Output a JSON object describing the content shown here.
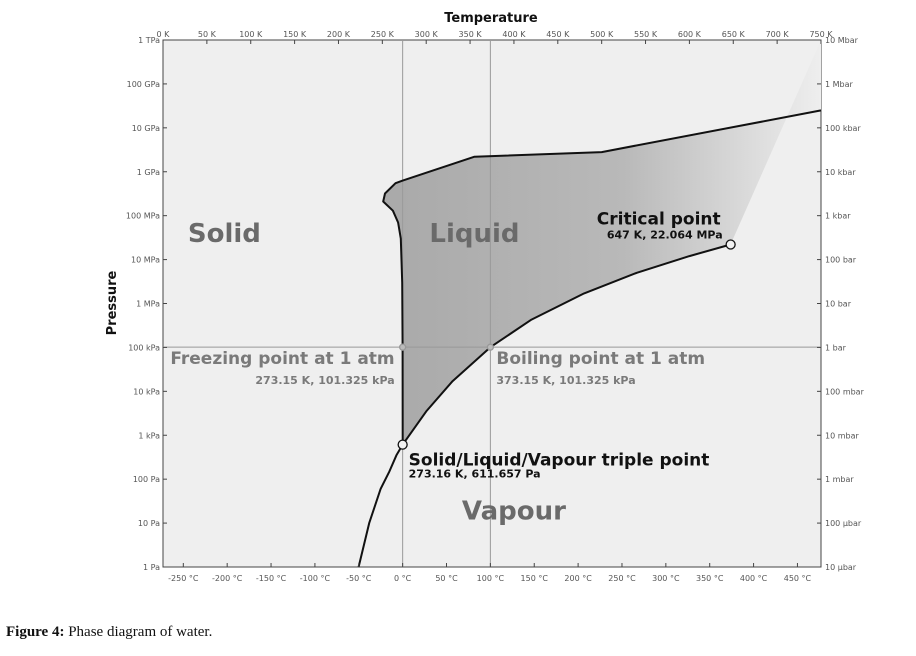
{
  "chart_data": {
    "type": "line",
    "xlabel": "Temperature",
    "ylabel": "Pressure",
    "x_scale": "linear (kelvin, top) / celsius (bottom)",
    "y_scale": "log",
    "xlim_K": [
      0,
      750
    ],
    "ylim_Pa": [
      1,
      1000000000000.0
    ],
    "x_ticks_top_K": [
      0,
      50,
      100,
      150,
      200,
      250,
      300,
      350,
      400,
      450,
      500,
      550,
      600,
      650,
      700,
      750
    ],
    "x_tick_labels_top": [
      "0 K",
      "50 K",
      "100 K",
      "150 K",
      "200 K",
      "250 K",
      "300 K",
      "350 K",
      "400 K",
      "450 K",
      "500 K",
      "550 K",
      "600 K",
      "650 K",
      "700 K",
      "750 K"
    ],
    "x_ticks_bottom_C": [
      -250,
      -200,
      -150,
      -100,
      -50,
      0,
      50,
      100,
      150,
      200,
      250,
      300,
      350,
      400,
      450
    ],
    "x_tick_labels_bottom": [
      "-250 °C",
      "-200 °C",
      "-150 °C",
      "-100 °C",
      "-50 °C",
      "0 °C",
      "50 °C",
      "100 °C",
      "150 °C",
      "200 °C",
      "250 °C",
      "300 °C",
      "350 °C",
      "400 °C",
      "450 °C"
    ],
    "y_ticks_Pa": [
      1,
      10,
      100,
      1000,
      10000,
      100000,
      1000000,
      10000000,
      100000000,
      1000000000,
      10000000000,
      100000000000,
      1000000000000
    ],
    "y_tick_labels_left": [
      "1 Pa",
      "10 Pa",
      "100 Pa",
      "1 kPa",
      "10 kPa",
      "100 kPa",
      "1 MPa",
      "10 MPa",
      "100 MPa",
      "1 GPa",
      "10 GPa",
      "100 GPa",
      "1 TPa"
    ],
    "y_tick_labels_right": [
      "10 µbar",
      "100 µbar",
      "1 mbar",
      "10 mbar",
      "100 mbar",
      "1 bar",
      "10 bar",
      "100 bar",
      "1 kbar",
      "10 kbar",
      "100 kbar",
      "1 Mbar",
      "10 Mbar"
    ],
    "series": [
      {
        "name": "sublimation",
        "x": [
          223,
          235,
          248,
          258,
          266,
          273.16
        ],
        "y": [
          1,
          10,
          60,
          150,
          350,
          611.657
        ]
      },
      {
        "name": "vaporization",
        "x": [
          273.16,
          300,
          330,
          373.15,
          420,
          480,
          540,
          600,
          647
        ],
        "y": [
          611.657,
          3500,
          17000,
          101325,
          430000,
          1700000,
          5000000,
          12000000,
          22064000
        ]
      },
      {
        "name": "melting",
        "x": [
          273.16,
          273.1,
          272.6,
          271,
          268,
          262,
          251,
          253,
          265,
          273.16,
          355,
          500,
          750
        ],
        "y": [
          611.657,
          100000.0,
          3000000.0,
          30000000.0,
          70000000.0,
          130000000.0,
          210000000.0,
          320000000.0,
          550000000.0,
          630000000.0,
          2200000000.0,
          2800000000.0,
          25000000000.0
        ]
      }
    ],
    "reference_lines": {
      "x_K": [
        273.15,
        373.15
      ],
      "y_Pa": [
        101325
      ]
    },
    "points": [
      {
        "x": 273.16,
        "y": 611.657,
        "label": "Solid/Liquid/Vapour triple point",
        "detail": "273.16 K, 611.657 Pa"
      },
      {
        "x": 647,
        "y": 22064000,
        "label": "Critical point",
        "detail": "647 K, 22.064 MPa"
      },
      {
        "x": 273.15,
        "y": 101325,
        "label": "Freezing point at 1 atm",
        "detail": "273.15 K, 101.325 kPa"
      },
      {
        "x": 373.15,
        "y": 101325,
        "label": "Boiling point at 1 atm",
        "detail": "373.15 K, 101.325 kPa"
      }
    ],
    "regions": [
      {
        "label": "Solid",
        "x": 70,
        "y": 25000000.0
      },
      {
        "label": "Liquid",
        "x": 355,
        "y": 25000000.0
      },
      {
        "label": "Vapour",
        "x": 400,
        "y": 12
      }
    ],
    "grid": false,
    "colors": {
      "background": "#efefef",
      "liquid": "#bdbdbd",
      "curve": "#111111",
      "ref_line": "#999999",
      "label": "#6a6a6a"
    }
  },
  "caption": {
    "label": "Figure 4:",
    "text": " Phase diagram of water."
  }
}
